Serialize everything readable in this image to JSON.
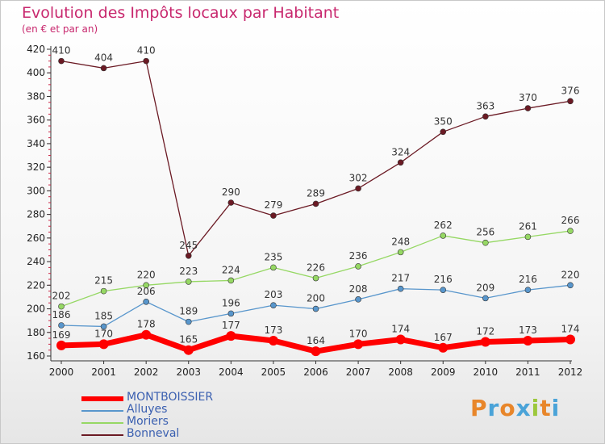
{
  "header": {
    "title": "Evolution des Impôts locaux par Habitant",
    "subtitle": "(en € et par an)"
  },
  "logo": {
    "text": "Proxiti",
    "colors": [
      "#e8862a",
      "#4aa3d8",
      "#e8862a",
      "#4aa3d8",
      "#9cc83c",
      "#e8862a",
      "#4aa3d8"
    ]
  },
  "chart_data": {
    "type": "line",
    "x": [
      "2000",
      "2001",
      "2002",
      "2003",
      "2004",
      "2005",
      "2006",
      "2007",
      "2008",
      "2009",
      "2010",
      "2011",
      "2012"
    ],
    "ylim": [
      160,
      420
    ],
    "yticks": [
      160,
      180,
      200,
      220,
      240,
      260,
      280,
      300,
      320,
      340,
      360,
      380,
      400,
      420
    ],
    "grid": false,
    "legend": "bottom-left",
    "series": [
      {
        "name": "Bonneval",
        "color": "#6b1a24",
        "values": [
          410,
          404,
          410,
          245,
          290,
          279,
          289,
          302,
          324,
          350,
          363,
          370,
          376
        ]
      },
      {
        "name": "Moriers",
        "color": "#96d864",
        "values": [
          202,
          215,
          220,
          223,
          224,
          235,
          226,
          236,
          248,
          262,
          256,
          261,
          266
        ]
      },
      {
        "name": "Alluyes",
        "color": "#5896cc",
        "values": [
          186,
          185,
          206,
          189,
          196,
          203,
          200,
          208,
          217,
          216,
          209,
          216,
          220
        ]
      },
      {
        "name": "MONTBOISSIER",
        "color": "#ff0000",
        "values": [
          169,
          170,
          178,
          165,
          177,
          173,
          164,
          170,
          174,
          167,
          172,
          173,
          174
        ]
      }
    ],
    "legend_order": [
      "MONTBOISSIER",
      "Alluyes",
      "Moriers",
      "Bonneval"
    ]
  }
}
